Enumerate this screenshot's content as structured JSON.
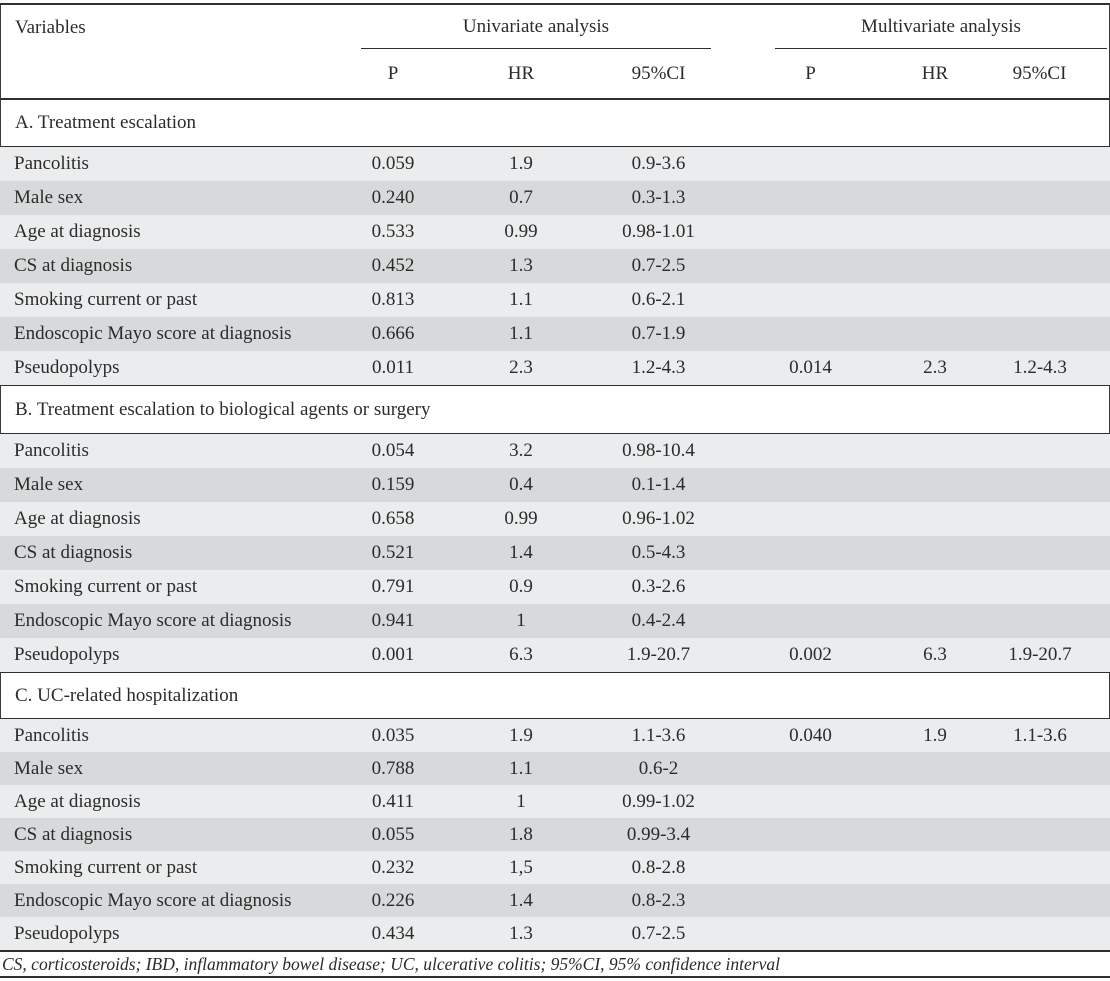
{
  "table": {
    "variables_header": "Variables",
    "groups": [
      "Univariate analysis",
      "Multivariate analysis"
    ],
    "subheaders": [
      "P",
      "HR",
      "95%CI",
      "P",
      "HR",
      "95%CI"
    ],
    "sections": [
      {
        "label": "A. Treatment escalation",
        "rows": [
          [
            "Pancolitis",
            "0.059",
            "1.9",
            "0.9-3.6",
            "",
            "",
            ""
          ],
          [
            "Male sex",
            "0.240",
            "0.7",
            "0.3-1.3",
            "",
            "",
            ""
          ],
          [
            "Age at diagnosis",
            "0.533",
            "0.99",
            "0.98-1.01",
            "",
            "",
            ""
          ],
          [
            "CS at diagnosis",
            "0.452",
            "1.3",
            "0.7-2.5",
            "",
            "",
            ""
          ],
          [
            "Smoking current or past",
            "0.813",
            "1.1",
            "0.6-2.1",
            "",
            "",
            ""
          ],
          [
            "Endoscopic Mayo score at diagnosis",
            "0.666",
            "1.1",
            "0.7-1.9",
            "",
            "",
            ""
          ],
          [
            "Pseudopolyps",
            "0.011",
            "2.3",
            "1.2-4.3",
            "0.014",
            "2.3",
            "1.2-4.3"
          ]
        ]
      },
      {
        "label": "B. Treatment escalation to biological agents or surgery",
        "rows": [
          [
            "Pancolitis",
            "0.054",
            "3.2",
            "0.98-10.4",
            "",
            "",
            ""
          ],
          [
            "Male sex",
            "0.159",
            "0.4",
            "0.1-1.4",
            "",
            "",
            ""
          ],
          [
            "Age at diagnosis",
            "0.658",
            "0.99",
            "0.96-1.02",
            "",
            "",
            ""
          ],
          [
            "CS at diagnosis",
            "0.521",
            "1.4",
            "0.5-4.3",
            "",
            "",
            ""
          ],
          [
            "Smoking current or past",
            "0.791",
            "0.9",
            "0.3-2.6",
            "",
            "",
            ""
          ],
          [
            "Endoscopic Mayo score at diagnosis",
            "0.941",
            "1",
            "0.4-2.4",
            "",
            "",
            ""
          ],
          [
            "Pseudopolyps",
            "0.001",
            "6.3",
            "1.9-20.7",
            "0.002",
            "6.3",
            "1.9-20.7"
          ]
        ]
      },
      {
        "label": "C. UC-related hospitalization",
        "rows": [
          [
            "Pancolitis",
            "0.035",
            "1.9",
            "1.1-3.6",
            "0.040",
            "1.9",
            "1.1-3.6"
          ],
          [
            "Male sex",
            "0.788",
            "1.1",
            "0.6-2",
            "",
            "",
            ""
          ],
          [
            "Age at diagnosis",
            "0.411",
            "1",
            "0.99-1.02",
            "",
            "",
            ""
          ],
          [
            "CS at diagnosis",
            "0.055",
            "1.8",
            "0.99-3.4",
            "",
            "",
            ""
          ],
          [
            "Smoking current or past",
            "0.232",
            "1,5",
            "0.8-2.8",
            "",
            "",
            ""
          ],
          [
            "Endoscopic Mayo score at diagnosis",
            "0.226",
            "1.4",
            "0.8-2.3",
            "",
            "",
            ""
          ],
          [
            "Pseudopolyps",
            "0.434",
            "1.3",
            "0.7-2.5",
            "",
            "",
            ""
          ]
        ]
      }
    ],
    "footnote": "CS, corticosteroids; IBD, inflammatory bowel disease; UC, ulcerative colitis; 95%CI, 95% confidence interval",
    "colors": {
      "row_light": "#ebeced",
      "row_dark": "#d7d9da",
      "rule": "#2f2f2f",
      "text": "#2b2b2b"
    }
  }
}
